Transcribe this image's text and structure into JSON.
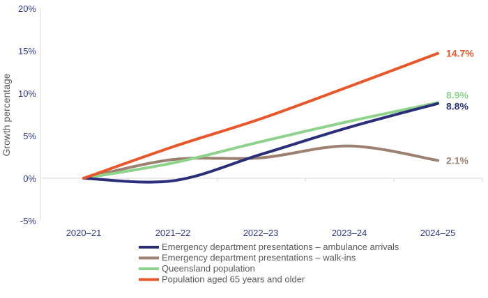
{
  "chart_data": {
    "type": "line",
    "title": "",
    "xlabel": "",
    "ylabel": "Growth percentage",
    "categories": [
      "2020–21",
      "2021–22",
      "2022–23",
      "2023–24",
      "2024–25"
    ],
    "ylim": [
      -5,
      20
    ],
    "yticks": [
      -5,
      0,
      5,
      10,
      15,
      20
    ],
    "ytick_labels": [
      "-5%",
      "0%",
      "5%",
      "10%",
      "15%",
      "20%"
    ],
    "grid": false,
    "legend_placement": "bottom",
    "series": [
      {
        "name": "Emergency department presentations – ambulance arrivals",
        "color": "#2B2F7A",
        "values": [
          0,
          -0.3,
          2.8,
          6.0,
          8.8
        ],
        "end_label": "8.8%"
      },
      {
        "name": "Emergency department presentations – walk-ins",
        "color": "#9C8070",
        "values": [
          0,
          2.2,
          2.4,
          3.8,
          2.1
        ],
        "end_label": "2.1%"
      },
      {
        "name": "Queensland population",
        "color": "#8DD38A",
        "values": [
          0,
          1.8,
          4.3,
          6.7,
          8.9
        ],
        "end_label": "8.9%"
      },
      {
        "name": "Population aged 65 years and older",
        "color": "#E8562A",
        "values": [
          0,
          3.7,
          7.0,
          10.8,
          14.7
        ],
        "end_label": "14.7%"
      }
    ]
  }
}
